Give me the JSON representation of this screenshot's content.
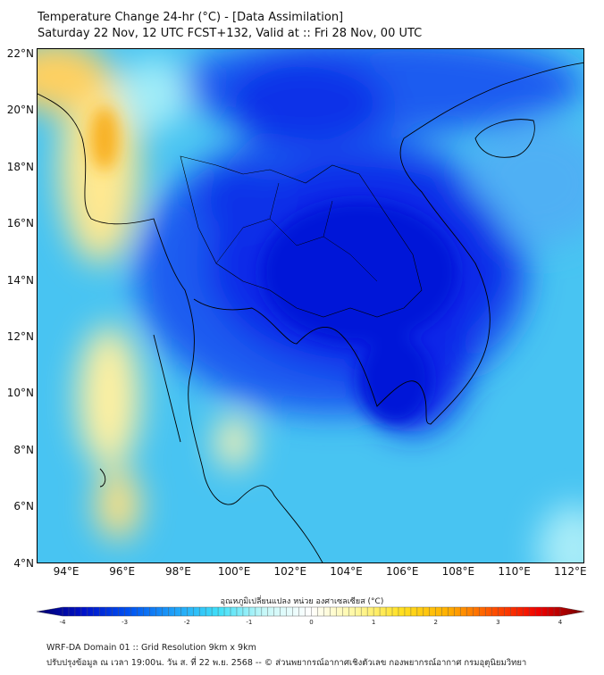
{
  "title_line1": "Temperature Change 24-hr (°C) - [Data Assimilation]",
  "title_line2": "Saturday 22 Nov, 12 UTC FCST+132, Valid at :: Fri 28 Nov, 00 UTC",
  "lat_labels": [
    "22°N",
    "20°N",
    "18°N",
    "16°N",
    "14°N",
    "12°N",
    "10°N",
    "8°N",
    "6°N",
    "4°N"
  ],
  "lon_labels": [
    "94°E",
    "96°E",
    "98°E",
    "100°E",
    "102°E",
    "104°E",
    "106°E",
    "108°E",
    "110°E",
    "112°E"
  ],
  "colorbar": {
    "label": "อุณหภูมิเปลี่ยนแปลง หน่วย องศาเซลเซียส (°C)",
    "ticks": [
      "-4",
      "-3",
      "-2",
      "-1",
      "0",
      "1",
      "2",
      "3",
      "4"
    ],
    "min": -4,
    "max": 4,
    "colors": [
      "#00006e",
      "#0010c8",
      "#0050f0",
      "#1ea0f8",
      "#40e0f8",
      "#c8f8f8",
      "#ffffff",
      "#fff8a0",
      "#ffe020",
      "#ffb000",
      "#ff5000",
      "#f00000",
      "#700000"
    ]
  },
  "footer": {
    "line1": "WRF-DA Domain 01 :: Grid Resolution 9km x 9km",
    "line2": "ปรับปรุงข้อมูล ณ เวลา 19:00น. วัน ส. ที่ 22 พ.ย. 2568 -- © ส่วนพยากรณ์อากาศเชิงตัวเลข กองพยากรณ์อากาศ กรมอุตุนิยมวิทยา"
  }
}
